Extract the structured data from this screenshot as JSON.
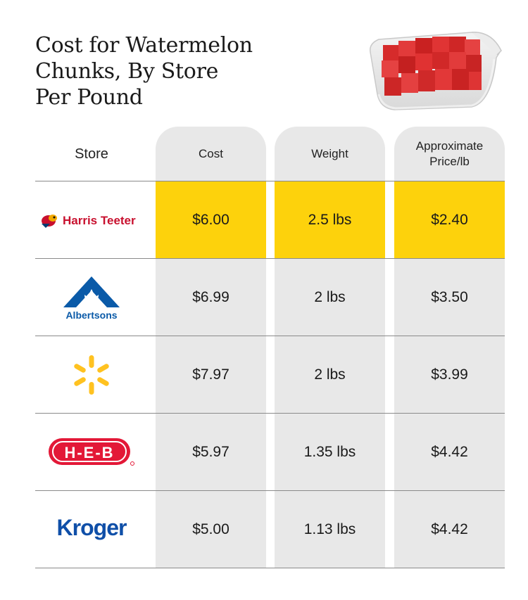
{
  "title": {
    "line1": "Cost for Watermelon",
    "line2": "Chunks, By Store",
    "line3": "Per Pound"
  },
  "headers": {
    "store": "Store",
    "cost": "Cost",
    "weight": "Weight",
    "price_line1": "Approximate",
    "price_line2": "Price/lb"
  },
  "colors": {
    "highlight": "#fdd20c",
    "column_bg": "#e8e8e8"
  },
  "rows": [
    {
      "store": "Harris Teeter",
      "logo_text": "Harris Teeter",
      "cost": "$6.00",
      "weight": "2.5 lbs",
      "price": "$2.40",
      "highlighted": true
    },
    {
      "store": "Albertsons",
      "logo_text": "Albertsons",
      "cost": "$6.99",
      "weight": "2 lbs",
      "price": "$3.50",
      "highlighted": false
    },
    {
      "store": "Walmart",
      "logo_text": "",
      "cost": "$7.97",
      "weight": "2 lbs",
      "price": "$3.99",
      "highlighted": false
    },
    {
      "store": "H-E-B",
      "logo_text": "H-E-B",
      "cost": "$5.97",
      "weight": "1.35 lbs",
      "price": "$4.42",
      "highlighted": false
    },
    {
      "store": "Kroger",
      "logo_text": "Kroger",
      "cost": "$5.00",
      "weight": "1.13 lbs",
      "price": "$4.42",
      "highlighted": false
    }
  ]
}
